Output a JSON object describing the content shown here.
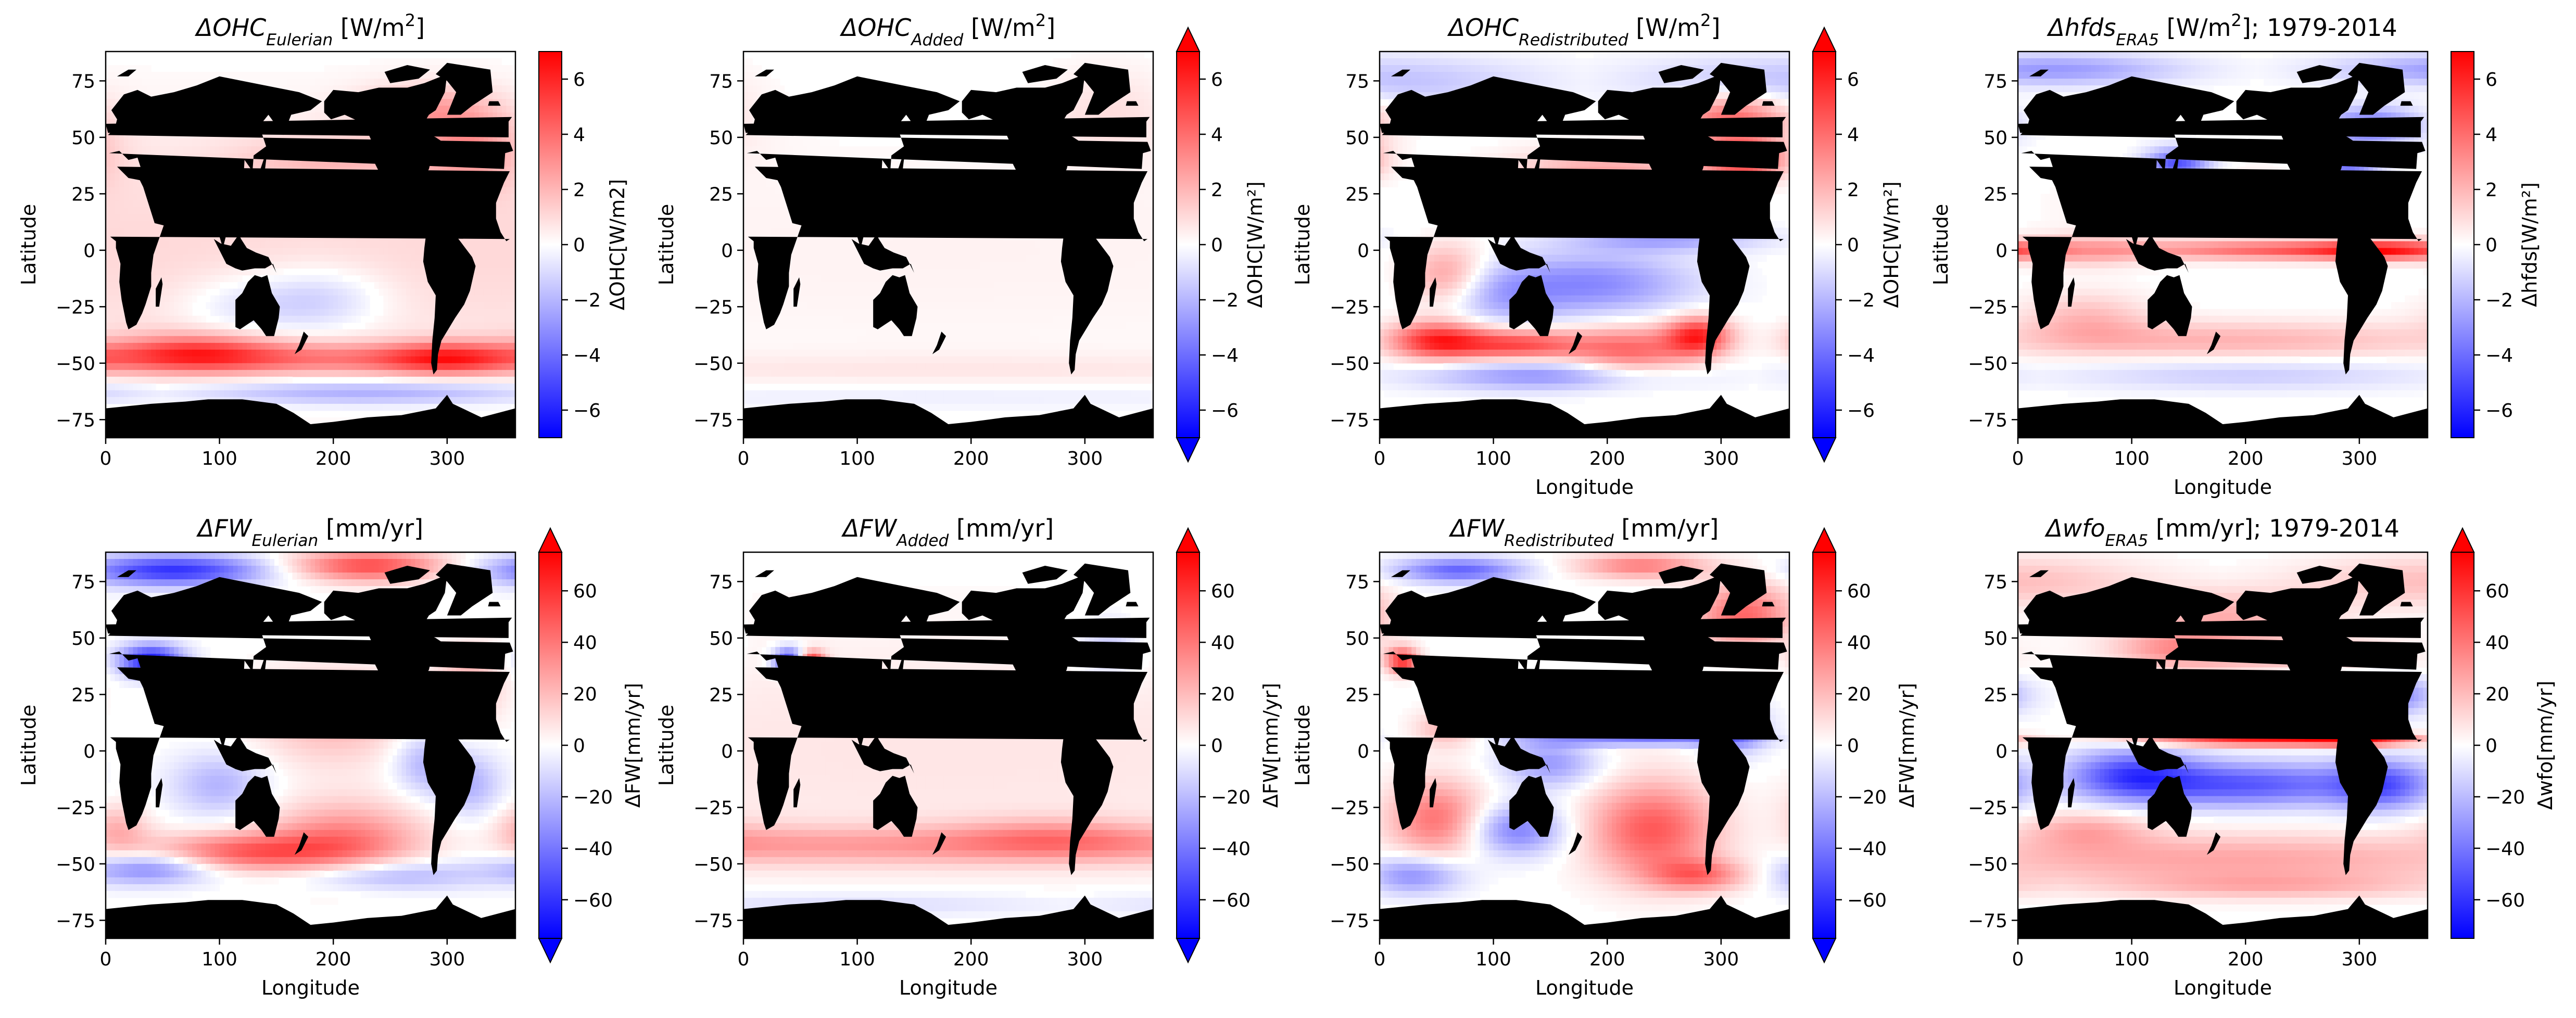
{
  "colors": {
    "negative": "#0000ff",
    "neutral": "#ffffff",
    "positive": "#ff0000",
    "land": "#000000"
  },
  "chart_data": [
    {
      "type": "heatmap",
      "title_main": "ΔOHC",
      "title_sub": "Eulerian",
      "title_unit": " [W/m",
      "title_sup": "2",
      "title_tail": "]",
      "xlabel": "",
      "ylabel": "Latitude",
      "xticks": [
        0,
        100,
        200,
        300
      ],
      "yticks": [
        75,
        50,
        25,
        0,
        -25,
        -50,
        -75
      ],
      "xlim": [
        0,
        360
      ],
      "ylim": [
        -83,
        88
      ],
      "colorbar_label": "ΔOHC[W/m2]",
      "colorbar_ticks": [
        6,
        4,
        2,
        0,
        -2,
        -4,
        -6
      ],
      "colorbar_range": [
        -7,
        7
      ],
      "colorbar_extend": "neither",
      "field": "ohc_eulerian"
    },
    {
      "type": "heatmap",
      "title_main": "ΔOHC",
      "title_sub": "Added",
      "title_unit": " [W/m",
      "title_sup": "2",
      "title_tail": "]",
      "xlabel": "",
      "ylabel": "Latitude",
      "xticks": [
        0,
        100,
        200,
        300
      ],
      "yticks": [
        75,
        50,
        25,
        0,
        -25,
        -50,
        -75
      ],
      "xlim": [
        0,
        360
      ],
      "ylim": [
        -83,
        88
      ],
      "colorbar_label": "ΔOHC[W/m²]",
      "colorbar_ticks": [
        6,
        4,
        2,
        0,
        -2,
        -4,
        -6
      ],
      "colorbar_range": [
        -7,
        7
      ],
      "colorbar_extend": "both",
      "field": "ohc_added"
    },
    {
      "type": "heatmap",
      "title_main": "ΔOHC",
      "title_sub": "Redistributed",
      "title_unit": " [W/m",
      "title_sup": "2",
      "title_tail": "]",
      "xlabel": "Longitude",
      "ylabel": "Latitude",
      "xticks": [
        0,
        100,
        200,
        300
      ],
      "yticks": [
        75,
        50,
        25,
        0,
        -25,
        -50,
        -75
      ],
      "xlim": [
        0,
        360
      ],
      "ylim": [
        -83,
        88
      ],
      "colorbar_label": "ΔOHC[W/m²]",
      "colorbar_ticks": [
        6,
        4,
        2,
        0,
        -2,
        -4,
        -6
      ],
      "colorbar_range": [
        -7,
        7
      ],
      "colorbar_extend": "both",
      "field": "ohc_redistributed"
    },
    {
      "type": "heatmap",
      "title_main": "Δhfds",
      "title_sub": "ERA5",
      "title_unit": " [W/m",
      "title_sup": "2",
      "title_tail": "]; 1979-2014",
      "xlabel": "Longitude",
      "ylabel": "Latitude",
      "xticks": [
        0,
        100,
        200,
        300
      ],
      "yticks": [
        75,
        50,
        25,
        0,
        -25,
        -50,
        -75
      ],
      "xlim": [
        0,
        360
      ],
      "ylim": [
        -83,
        88
      ],
      "colorbar_label": "Δhfds[W/m²]",
      "colorbar_ticks": [
        6,
        4,
        2,
        0,
        -2,
        -4,
        -6
      ],
      "colorbar_range": [
        -7,
        7
      ],
      "colorbar_extend": "neither",
      "field": "hfds_era5"
    },
    {
      "type": "heatmap",
      "title_main": "ΔFW",
      "title_sub": "Eulerian",
      "title_unit": " [mm/yr]",
      "title_sup": "",
      "title_tail": "",
      "xlabel": "Longitude",
      "ylabel": "Latitude",
      "xticks": [
        0,
        100,
        200,
        300
      ],
      "yticks": [
        75,
        50,
        25,
        0,
        -25,
        -50,
        -75
      ],
      "xlim": [
        0,
        360
      ],
      "ylim": [
        -83,
        88
      ],
      "colorbar_label": "ΔFW[mm/yr]",
      "colorbar_ticks": [
        60,
        40,
        20,
        0,
        -20,
        -40,
        -60
      ],
      "colorbar_range": [
        -75,
        75
      ],
      "colorbar_extend": "both",
      "field": "fw_eulerian"
    },
    {
      "type": "heatmap",
      "title_main": "ΔFW",
      "title_sub": "Added",
      "title_unit": " [mm/yr]",
      "title_sup": "",
      "title_tail": "",
      "xlabel": "Longitude",
      "ylabel": "Latitude",
      "xticks": [
        0,
        100,
        200,
        300
      ],
      "yticks": [
        75,
        50,
        25,
        0,
        -25,
        -50,
        -75
      ],
      "xlim": [
        0,
        360
      ],
      "ylim": [
        -83,
        88
      ],
      "colorbar_label": "ΔFW[mm/yr]",
      "colorbar_ticks": [
        60,
        40,
        20,
        0,
        -20,
        -40,
        -60
      ],
      "colorbar_range": [
        -75,
        75
      ],
      "colorbar_extend": "both",
      "field": "fw_added"
    },
    {
      "type": "heatmap",
      "title_main": "ΔFW",
      "title_sub": "Redistributed",
      "title_unit": " [mm/yr]",
      "title_sup": "",
      "title_tail": "",
      "xlabel": "Longitude",
      "ylabel": "Latitude",
      "xticks": [
        0,
        100,
        200,
        300
      ],
      "yticks": [
        75,
        50,
        25,
        0,
        -25,
        -50,
        -75
      ],
      "xlim": [
        0,
        360
      ],
      "ylim": [
        -83,
        88
      ],
      "colorbar_label": "ΔFW[mm/yr]",
      "colorbar_ticks": [
        60,
        40,
        20,
        0,
        -20,
        -40,
        -60
      ],
      "colorbar_range": [
        -75,
        75
      ],
      "colorbar_extend": "both",
      "field": "fw_redistributed"
    },
    {
      "type": "heatmap",
      "title_main": "Δwfo",
      "title_sub": "ERA5",
      "title_unit": " [mm/yr]; 1979-2014",
      "title_sup": "",
      "title_tail": "",
      "xlabel": "Longitude",
      "ylabel": "",
      "xticks": [
        0,
        100,
        200,
        300
      ],
      "yticks": [
        75,
        50,
        25,
        0,
        -25,
        -50,
        -75
      ],
      "xlim": [
        0,
        360
      ],
      "ylim": [
        -83,
        88
      ],
      "colorbar_label": "Δwfo[mm/yr]",
      "colorbar_ticks": [
        60,
        40,
        20,
        0,
        -20,
        -40,
        -60
      ],
      "colorbar_range": [
        -75,
        75
      ],
      "colorbar_extend": "max",
      "field": "wfo_era5"
    }
  ]
}
